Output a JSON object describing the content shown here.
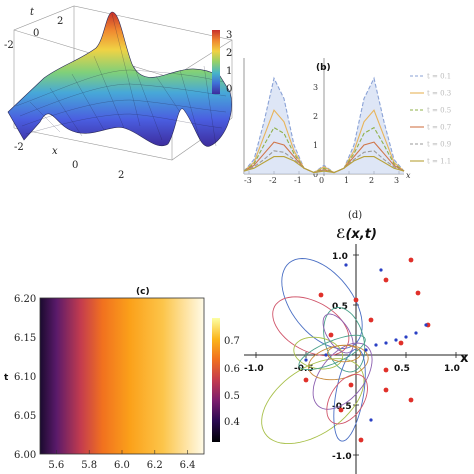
{
  "chart_data": [
    {
      "panel": "a",
      "type": "surface",
      "xlabel": "x",
      "ylabel": "t",
      "x_ticks": [
        "-2",
        "0",
        "2"
      ],
      "t_ticks": [
        "-2",
        "0",
        "2"
      ],
      "colorbar_ticks": [
        "3",
        "2",
        "1",
        "0"
      ],
      "colorbar_range": [
        0,
        3.3
      ],
      "colormap": [
        "#3d2c9c",
        "#3f70d8",
        "#47b5c8",
        "#93d06a",
        "#f1d142",
        "#f08a30",
        "#c8302a"
      ]
    },
    {
      "panel": "b",
      "type": "line",
      "title": "(b)",
      "xlabel": "x",
      "xlim": [
        -3.2,
        3.2
      ],
      "ylim": [
        0,
        4
      ],
      "x_ticks": [
        "-3",
        "-2",
        "-1",
        "0",
        "1",
        "2",
        "3"
      ],
      "y_ticks": [
        "0",
        "1",
        "2",
        "3"
      ],
      "legend_position": "right",
      "x": [
        -3.2,
        -2.8,
        -2.4,
        -2.0,
        -1.6,
        -1.2,
        -0.8,
        -0.4,
        0.0,
        0.4,
        0.8,
        1.2,
        1.6,
        2.0,
        2.4,
        2.8,
        3.2
      ],
      "series": [
        {
          "name": "t = 0.1",
          "color": "#8aa2d6",
          "dash": true,
          "values": [
            0.1,
            0.5,
            1.8,
            3.3,
            2.6,
            1.0,
            0.2,
            0.05,
            0.3,
            0.05,
            0.2,
            1.0,
            2.6,
            3.3,
            1.8,
            0.5,
            0.1
          ]
        },
        {
          "name": "t = 0.3",
          "color": "#e8b45a",
          "dash": false,
          "values": [
            0.1,
            0.4,
            1.3,
            2.2,
            1.8,
            0.8,
            0.2,
            0.05,
            0.25,
            0.05,
            0.2,
            0.8,
            1.8,
            2.2,
            1.3,
            0.4,
            0.1
          ]
        },
        {
          "name": "t = 0.5",
          "color": "#8fb04a",
          "dash": true,
          "values": [
            0.1,
            0.35,
            1.0,
            1.6,
            1.4,
            0.7,
            0.2,
            0.05,
            0.2,
            0.05,
            0.2,
            0.7,
            1.4,
            1.6,
            1.0,
            0.35,
            0.1
          ]
        },
        {
          "name": "t = 0.7",
          "color": "#d0764a",
          "dash": false,
          "values": [
            0.1,
            0.3,
            0.7,
            1.1,
            1.0,
            0.6,
            0.2,
            0.05,
            0.15,
            0.05,
            0.2,
            0.6,
            1.0,
            1.1,
            0.7,
            0.3,
            0.1
          ]
        },
        {
          "name": "t = 0.9",
          "color": "#9a9a9a",
          "dash": true,
          "values": [
            0.1,
            0.25,
            0.5,
            0.8,
            0.75,
            0.5,
            0.2,
            0.05,
            0.12,
            0.05,
            0.2,
            0.5,
            0.75,
            0.8,
            0.5,
            0.25,
            0.1
          ]
        },
        {
          "name": "t = 1.1",
          "color": "#b8a23a",
          "dash": false,
          "values": [
            0.1,
            0.2,
            0.4,
            0.6,
            0.6,
            0.45,
            0.2,
            0.05,
            0.1,
            0.05,
            0.2,
            0.45,
            0.6,
            0.6,
            0.4,
            0.2,
            0.1
          ]
        }
      ]
    },
    {
      "panel": "c",
      "type": "heatmap",
      "title": "(c)",
      "ylabel": "t",
      "xlim": [
        5.5,
        6.5
      ],
      "ylim": [
        6.0,
        6.2
      ],
      "x_ticks": [
        "5.6",
        "5.8",
        "6.0",
        "6.2",
        "6.4"
      ],
      "y_ticks": [
        "6.20",
        "6.15",
        "6.10",
        "6.05",
        "6.00"
      ],
      "colorbar_ticks": [
        "0.7",
        "0.6",
        "0.5",
        "0.4"
      ],
      "colorbar_range": [
        0.33,
        0.75
      ],
      "colormap": [
        "#000004",
        "#2b0a52",
        "#7a1d6d",
        "#c43c4e",
        "#f1711f",
        "#fbb51a",
        "#fcffa4"
      ]
    },
    {
      "panel": "d",
      "type": "parametric",
      "title": "(d)",
      "ylabel": "ℰ(x,t)",
      "xlabel": "x",
      "xlim": [
        -1.1,
        1.1
      ],
      "ylim": [
        -1.1,
        1.1
      ],
      "x_ticks": [
        "-1.0",
        "-0.5",
        "0.5",
        "1.0"
      ],
      "y_ticks": [
        "1.0",
        "0.5",
        "-0.5",
        "-1.0"
      ],
      "curve_colors": [
        "#4a6fc4",
        "#a8c04a",
        "#d0556a",
        "#8c5fb0",
        "#4aa08a",
        "#c88a3a"
      ]
    }
  ]
}
